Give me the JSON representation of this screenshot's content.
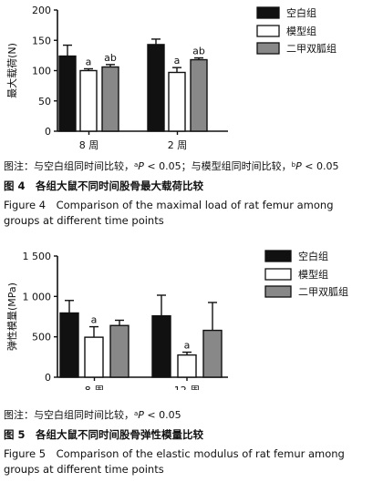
{
  "colors": {
    "blank": "#111111",
    "model": "#ffffff",
    "treated": "#888888",
    "axis": "#111111"
  },
  "chart_data": [
    {
      "type": "bar",
      "ylabel": "最大载荷(N)",
      "ylim": [
        0,
        200
      ],
      "yticks": [
        0,
        50,
        100,
        150,
        200
      ],
      "ytick_labels": [
        "0",
        "50",
        "100",
        "150",
        "200"
      ],
      "categories": [
        "8 周",
        "2 周"
      ],
      "series": [
        {
          "name": "空白组",
          "values": [
            124,
            143
          ],
          "errors": [
            18,
            9
          ],
          "labels": [
            "",
            ""
          ]
        },
        {
          "name": "模型组",
          "values": [
            100,
            97
          ],
          "errors": [
            3,
            8
          ],
          "labels": [
            "a",
            "a"
          ]
        },
        {
          "name": "二甲双胍组",
          "values": [
            106,
            118
          ],
          "errors": [
            4,
            3
          ],
          "labels": [
            "ab",
            "ab"
          ]
        }
      ],
      "legend": "top-right"
    },
    {
      "type": "bar",
      "ylabel": "弹性模量(MPa)",
      "ylim": [
        0,
        1500
      ],
      "yticks": [
        0,
        500,
        1000,
        1500
      ],
      "ytick_labels": [
        "0",
        "500",
        "1 000",
        "1 500"
      ],
      "categories": [
        "8 周",
        "12 周"
      ],
      "series": [
        {
          "name": "空白组",
          "values": [
            795,
            760
          ],
          "errors": [
            155,
            255
          ],
          "labels": [
            "",
            ""
          ]
        },
        {
          "name": "模型组",
          "values": [
            495,
            275
          ],
          "errors": [
            130,
            35
          ],
          "labels": [
            "a",
            "a"
          ]
        },
        {
          "name": "二甲双胍组",
          "values": [
            640,
            580
          ],
          "errors": [
            65,
            345
          ],
          "labels": [
            "",
            ""
          ]
        }
      ],
      "legend": "top-right"
    }
  ],
  "figure4": {
    "note_prefix": "图注：与空白组同时间比较，",
    "note_sup_a": "a",
    "note_p_a": "P",
    "note_lt_a": " < 0.05；与模型组同时间比较，",
    "note_sup_b": "b",
    "note_p_b": "P",
    "note_lt_b": " < 0.05",
    "caption_cn": "图 4　各组大鼠不同时间股骨最大载荷比较",
    "caption_en_line1": "Figure 4　Comparison of the maximal load of rat femur among",
    "caption_en_line2": "groups at different time points"
  },
  "figure5": {
    "note_prefix": "图注：与空白组同时间比较，",
    "note_sup_a": "a",
    "note_p_a": "P",
    "note_lt_a": " < 0.05",
    "caption_cn": "图 5　各组大鼠不同时间股骨弹性模量比较",
    "caption_en_line1": "Figure 5　Comparison of the elastic modulus of rat femur among",
    "caption_en_line2": "groups at different time points"
  }
}
